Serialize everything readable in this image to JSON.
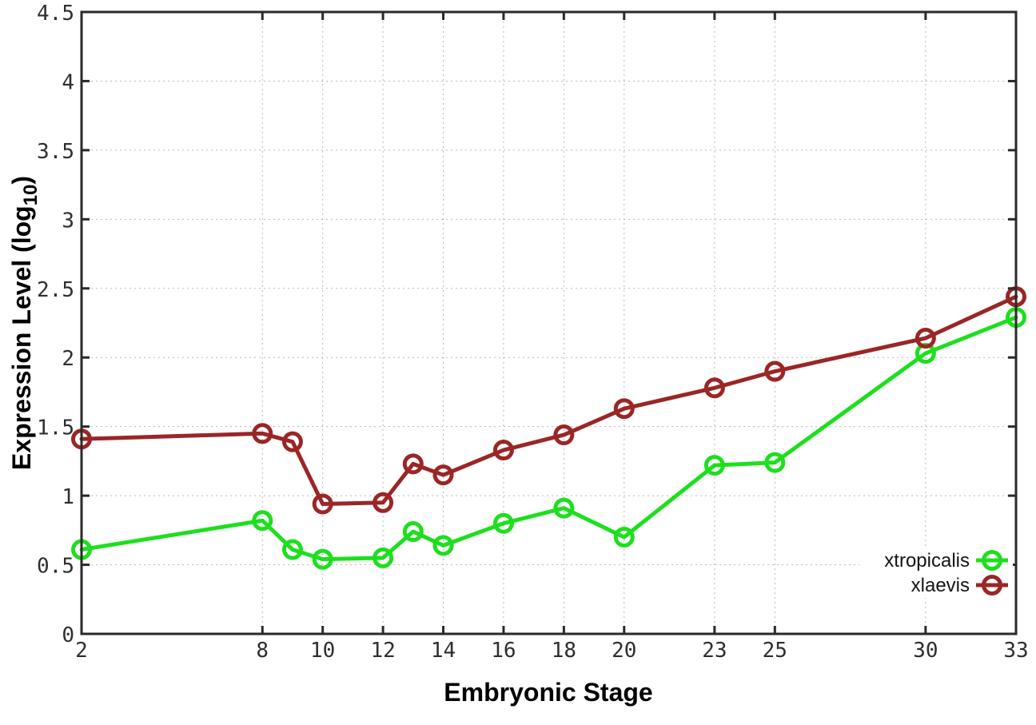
{
  "chart_data": {
    "type": "line",
    "title": "",
    "xlabel": "Embryonic Stage",
    "ylabel": "Expression Level (log10)",
    "ylabel_parts": {
      "prefix": "Expression Level (log",
      "sub": "10",
      "suffix": ")"
    },
    "xlim": [
      2,
      33
    ],
    "ylim": [
      0,
      4.5
    ],
    "grid": true,
    "legend_position": "inside-bottom-right",
    "x": [
      2,
      8,
      9,
      10,
      12,
      13,
      14,
      16,
      18,
      20,
      23,
      25,
      30,
      33
    ],
    "xtick_values": [
      2,
      8,
      10,
      12,
      14,
      16,
      18,
      20,
      23,
      25,
      30,
      33
    ],
    "xtick_labels": [
      "2",
      "8",
      "10",
      "12",
      "14",
      "16",
      "18",
      "20",
      "23",
      "25",
      "30",
      "33"
    ],
    "ytick_values": [
      0,
      0.5,
      1,
      1.5,
      2,
      2.5,
      3,
      3.5,
      4,
      4.5
    ],
    "ytick_labels": [
      "0",
      "0.5",
      "1",
      "1.5",
      "2",
      "2.5",
      "3",
      "3.5",
      "4",
      "4.5"
    ],
    "series": [
      {
        "name": "xtropicalis",
        "color": "#1ddf1d",
        "values": [
          0.61,
          0.82,
          0.61,
          0.54,
          0.55,
          0.74,
          0.64,
          0.8,
          0.91,
          0.7,
          1.22,
          1.24,
          2.03,
          2.29
        ]
      },
      {
        "name": "xlaevis",
        "color": "#9b2626",
        "values": [
          1.41,
          1.45,
          1.39,
          0.94,
          0.95,
          1.23,
          1.15,
          1.33,
          1.44,
          1.63,
          1.78,
          1.9,
          2.14,
          2.44
        ]
      }
    ]
  }
}
